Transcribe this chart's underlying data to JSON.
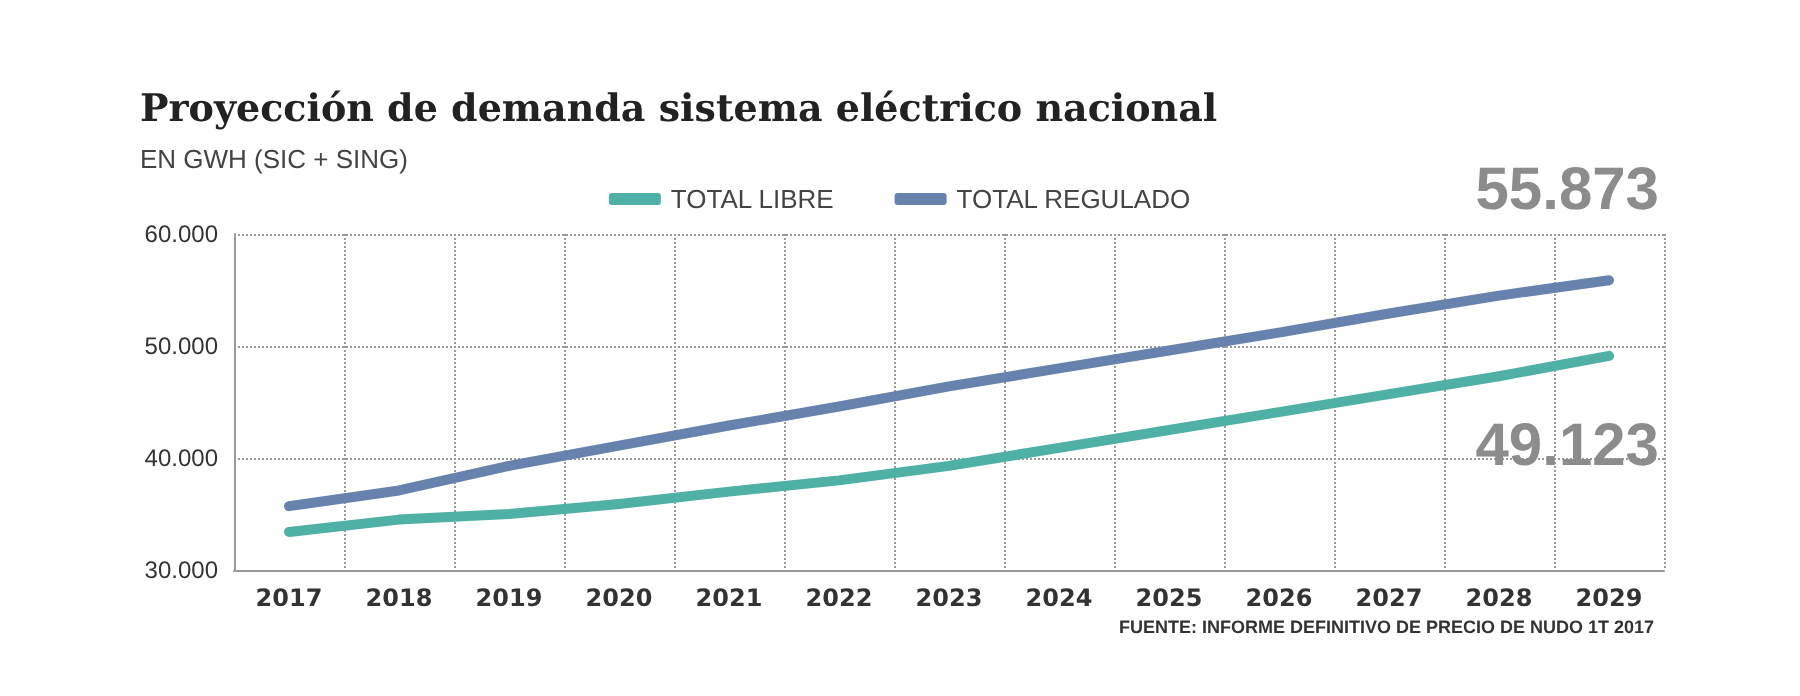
{
  "chart_data": {
    "type": "line",
    "title": "Proyección de demanda sistema eléctrico nacional",
    "subtitle": "EN GWH (SIC + SING)",
    "categories": [
      "2017",
      "2018",
      "2019",
      "2020",
      "2021",
      "2022",
      "2023",
      "2024",
      "2025",
      "2026",
      "2027",
      "2028",
      "2029"
    ],
    "series": [
      {
        "name": "TOTAL LIBRE",
        "color": "#4fb0a5",
        "values": [
          33400,
          34500,
          35000,
          35900,
          37000,
          38000,
          39300,
          40900,
          42500,
          44100,
          45700,
          47300,
          49123
        ]
      },
      {
        "name": "TOTAL REGULADO",
        "color": "#6783ad",
        "values": [
          35700,
          37100,
          39300,
          41100,
          42900,
          44600,
          46400,
          48000,
          49600,
          51200,
          52900,
          54500,
          55873
        ]
      }
    ],
    "ylim": [
      30000,
      60000
    ],
    "yticks": [
      {
        "value": 30000,
        "label": "30.000"
      },
      {
        "value": 40000,
        "label": "40.000"
      },
      {
        "value": 50000,
        "label": "50.000"
      },
      {
        "value": 60000,
        "label": "60.000"
      }
    ],
    "grid": true,
    "legend": "top",
    "marker": "none",
    "line_style": "solid",
    "annotations": [
      {
        "text": "55.873",
        "x": "2029",
        "y": 55873
      },
      {
        "text": "49.123",
        "x": "2029",
        "y": 49123
      },
      "FUENTE: INFORME DEFINITIVO DE PRECIO DE NUDO 1T 2017"
    ]
  }
}
